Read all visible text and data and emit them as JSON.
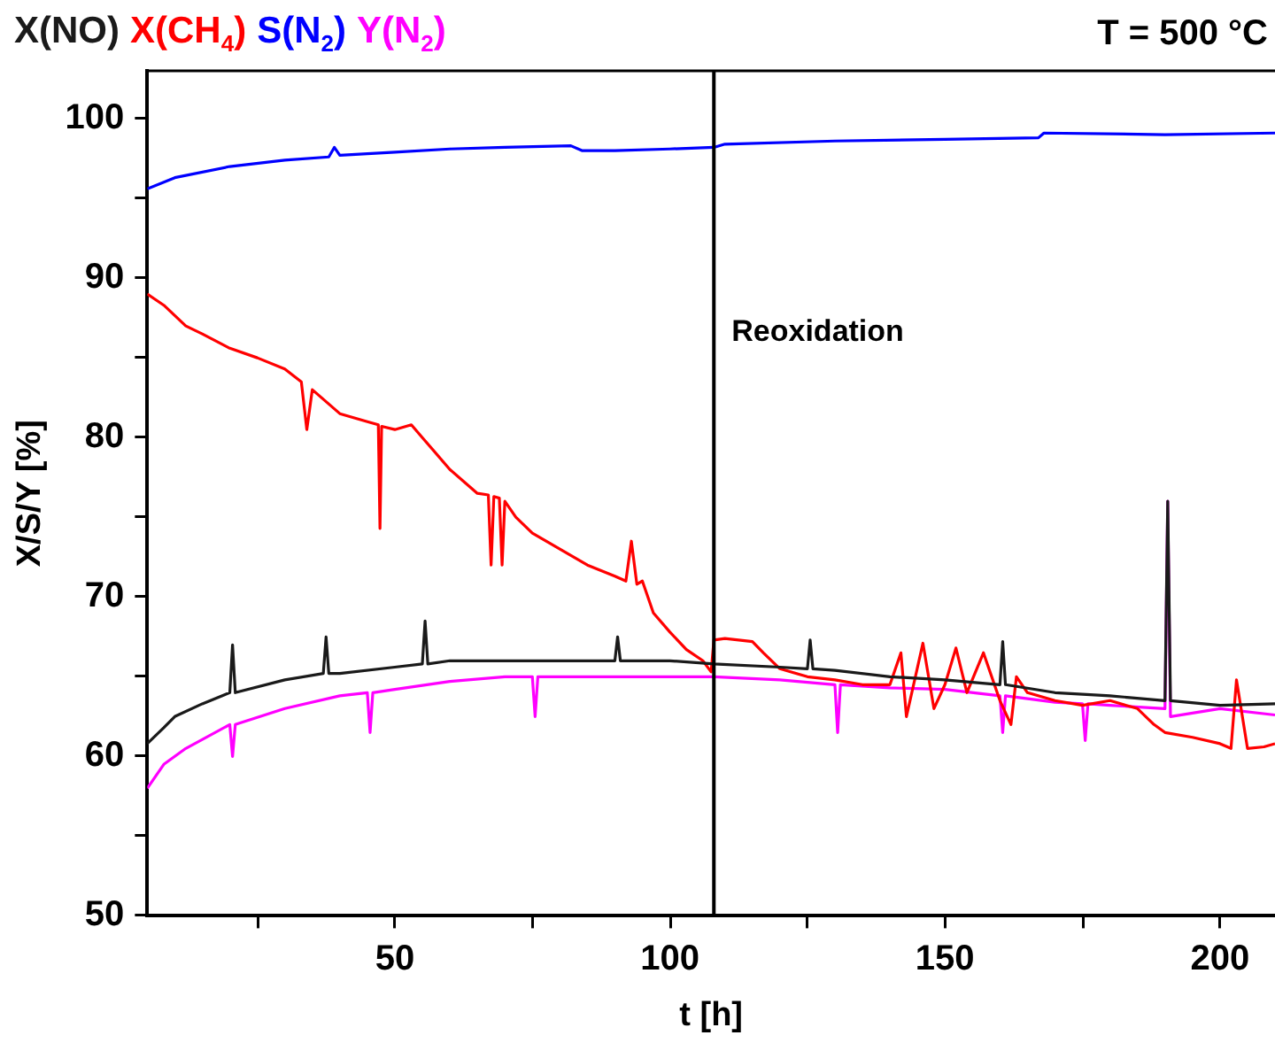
{
  "chart_data": {
    "type": "line",
    "xlabel": "t [h]",
    "ylabel": "X/S/Y [%]",
    "legend": "top left",
    "marker": "none",
    "line_style": "solid",
    "annotations": [
      "T = 500 °C"
    ],
    "ref_lines": [
      {
        "axis": "x",
        "value": 108,
        "label": "Reoxidation",
        "color": "#000000"
      }
    ],
    "xlim": [
      5,
      210
    ],
    "xticks": [
      {
        "value": 25,
        "label": null
      },
      50,
      {
        "value": 75,
        "label": null
      },
      100,
      {
        "value": 125,
        "label": null
      },
      150,
      {
        "value": 175,
        "label": null
      },
      200
    ],
    "ylim": [
      50,
      103
    ],
    "yticks": [
      50,
      {
        "value": 55,
        "label": null
      },
      60,
      {
        "value": 65,
        "label": null
      },
      70,
      {
        "value": 75,
        "label": null
      },
      80,
      {
        "value": 85,
        "label": null
      },
      90,
      {
        "value": 95,
        "label": null
      },
      100
    ],
    "series": [
      {
        "name": "X(NO)",
        "color": "#1a1a1a",
        "x": [
          5,
          8,
          10,
          15,
          20,
          20.5,
          21,
          30,
          37,
          37.5,
          38,
          40,
          50,
          55,
          55.5,
          56,
          60,
          70,
          80,
          90,
          90.5,
          91,
          100,
          108,
          120,
          125,
          125.5,
          126,
          130,
          140,
          150,
          160,
          160.5,
          161,
          170,
          180,
          190,
          190.5,
          191,
          200,
          210
        ],
        "values": [
          60.8,
          61.8,
          62.5,
          63.3,
          64,
          67,
          64,
          64.8,
          65.2,
          67.5,
          65.2,
          65.2,
          65.6,
          65.8,
          68.5,
          65.8,
          66,
          66,
          66,
          66,
          67.5,
          66,
          66,
          65.8,
          65.6,
          65.5,
          67.3,
          65.5,
          65.4,
          65,
          64.8,
          64.5,
          67.2,
          64.5,
          64,
          63.8,
          63.5,
          76,
          63.5,
          63.2,
          63.3
        ]
      },
      {
        "name": "X(CH$_{4}$)",
        "color": "#ff0000",
        "x": [
          5,
          8,
          12,
          15,
          20,
          25,
          30,
          33,
          34,
          35,
          40,
          45,
          47,
          47.3,
          47.6,
          50,
          53,
          55,
          60,
          65,
          67,
          67.5,
          68,
          69,
          69.5,
          70,
          72,
          75,
          80,
          85,
          90,
          92,
          93,
          94,
          95,
          97,
          100,
          103,
          106,
          107.5,
          108,
          110,
          115,
          117,
          120,
          125,
          130,
          135,
          140,
          142,
          143,
          146,
          148,
          150,
          152,
          154,
          157,
          160,
          162,
          163,
          165,
          170,
          175,
          180,
          185,
          188,
          190,
          195,
          200,
          202,
          203,
          205,
          208,
          210
        ],
        "values": [
          89,
          88.3,
          87,
          86.5,
          85.6,
          85,
          84.3,
          83.5,
          80.5,
          83,
          81.5,
          81,
          80.8,
          74.3,
          80.7,
          80.5,
          80.8,
          80,
          78,
          76.5,
          76.4,
          72,
          76.3,
          76.2,
          72,
          76,
          75,
          74,
          73,
          72,
          71.3,
          71,
          73.5,
          70.8,
          71,
          69,
          67.8,
          66.7,
          66,
          65.3,
          67.3,
          67.4,
          67.2,
          66.5,
          65.5,
          65,
          64.8,
          64.5,
          64.5,
          66.5,
          62.5,
          67.1,
          63,
          64.5,
          66.8,
          64,
          66.5,
          63.5,
          62,
          65,
          64,
          63.5,
          63.2,
          63.5,
          63,
          62,
          61.5,
          61.2,
          60.8,
          60.5,
          64.8,
          60.5,
          60.6,
          60.8
        ]
      },
      {
        "name": "S(N$_{2}$)",
        "color": "#0000ff",
        "x": [
          5,
          10,
          20,
          30,
          38,
          39,
          40,
          50,
          60,
          70,
          82,
          84,
          90,
          100,
          108,
          110,
          130,
          150,
          167,
          168,
          190,
          210
        ],
        "values": [
          95.6,
          96.3,
          97,
          97.4,
          97.6,
          98.2,
          97.7,
          97.9,
          98.1,
          98.2,
          98.3,
          98,
          98,
          98.1,
          98.2,
          98.4,
          98.6,
          98.7,
          98.8,
          99.1,
          99,
          99.1
        ]
      },
      {
        "name": "Y(N$_{2}$)",
        "color": "#ff00ff",
        "x": [
          5,
          8,
          12,
          20,
          20.5,
          21,
          30,
          40,
          45,
          45.5,
          46,
          50,
          60,
          70,
          75,
          75.5,
          76,
          80,
          90,
          100,
          108,
          120,
          130,
          130.5,
          131,
          140,
          150,
          160,
          160.5,
          161,
          170,
          175,
          175.5,
          176,
          180,
          190,
          190.5,
          191,
          200,
          210
        ],
        "values": [
          58,
          59.5,
          60.5,
          62,
          60,
          62,
          63,
          63.8,
          64,
          61.5,
          64,
          64.2,
          64.7,
          65,
          65,
          62.5,
          65,
          65,
          65,
          65,
          65,
          64.8,
          64.5,
          61.5,
          64.5,
          64.3,
          64.2,
          63.8,
          61.5,
          63.8,
          63.4,
          63.3,
          61,
          63.3,
          63.2,
          63,
          76,
          62.5,
          63,
          62.6
        ]
      }
    ]
  }
}
